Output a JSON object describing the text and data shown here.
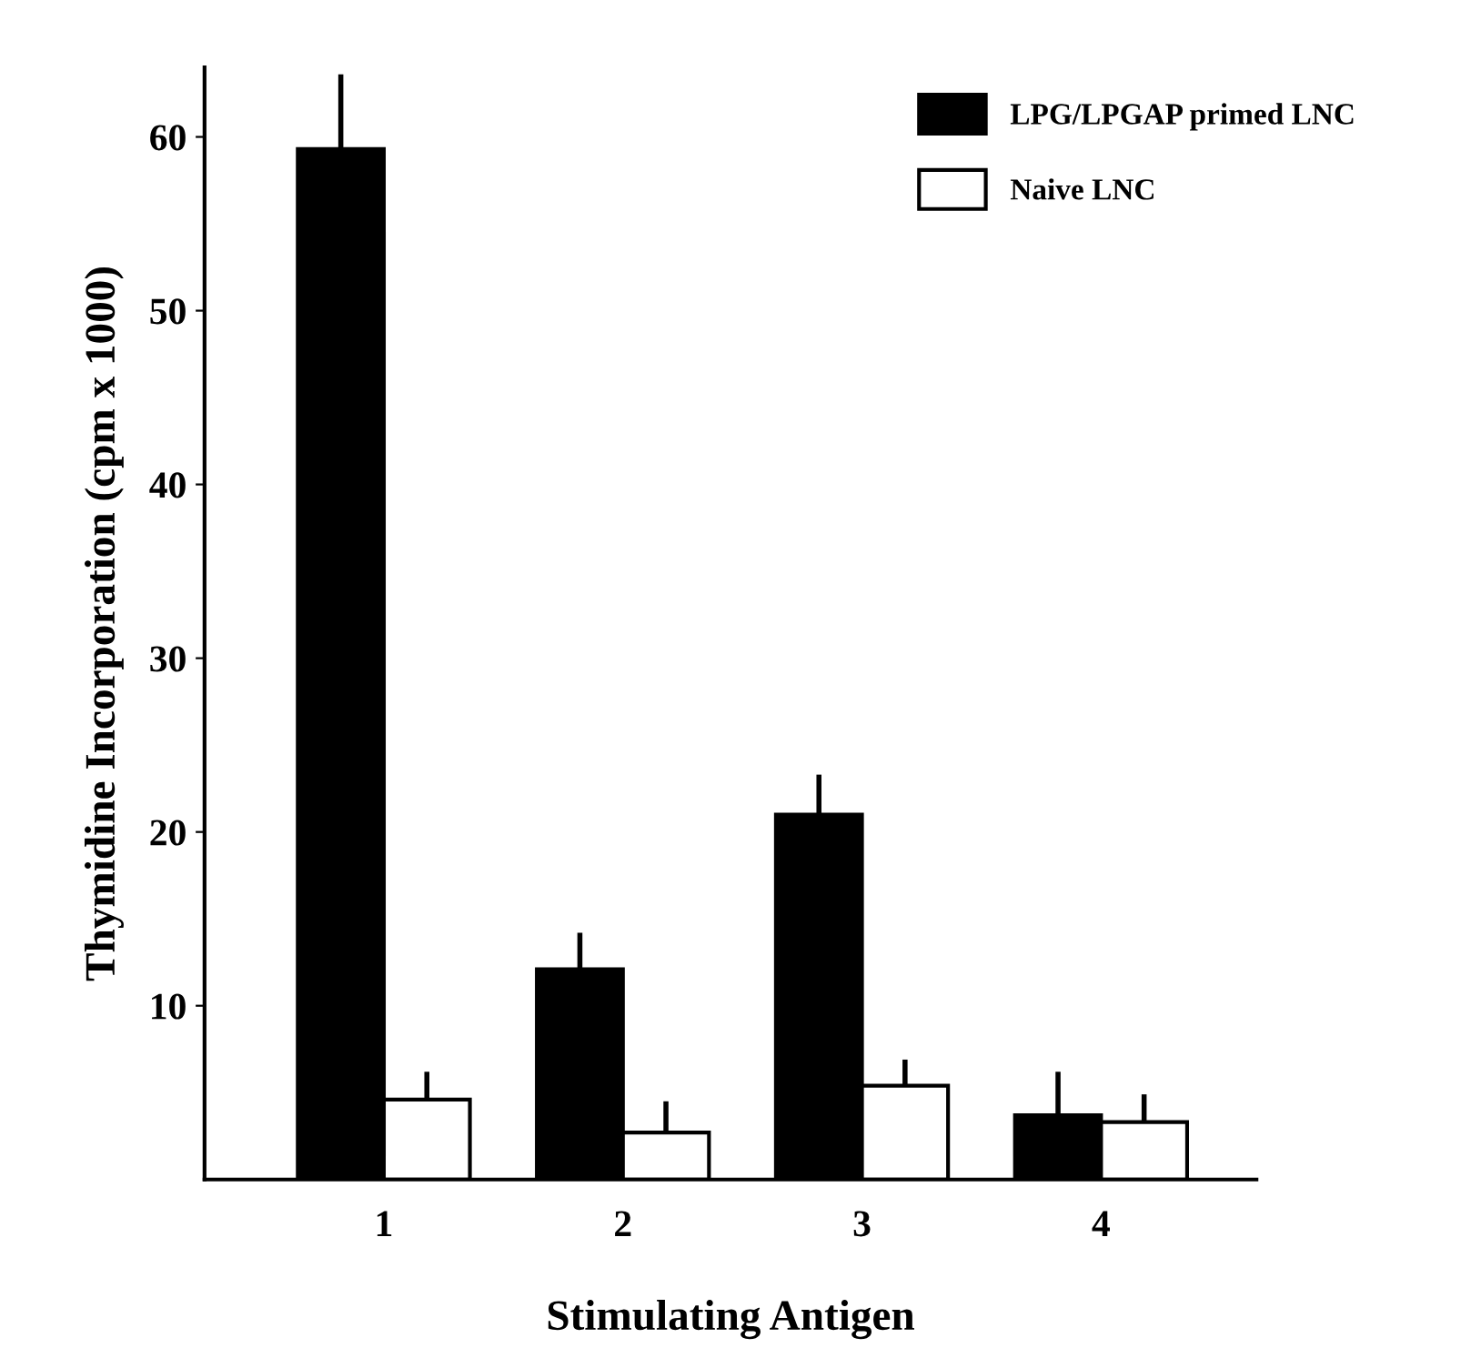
{
  "chart_data": {
    "type": "bar",
    "xlabel": "Stimulating Antigen",
    "ylabel": "Thymidine Incorporation (cpm x 1000)",
    "categories": [
      "1",
      "2",
      "3",
      "4"
    ],
    "series": [
      {
        "name": "LPG/LPGAP primed LNC",
        "color": "#000000",
        "values": [
          59.3,
          12.1,
          21.0,
          3.7
        ],
        "errors": [
          [
            59.3,
            63.6
          ],
          [
            12.1,
            14.2
          ],
          [
            21.0,
            23.3
          ],
          [
            3.7,
            6.2
          ]
        ]
      },
      {
        "name": "Naive LNC",
        "color": "#ffffff",
        "values": [
          4.6,
          2.7,
          5.4,
          3.3
        ],
        "errors": [
          [
            4.6,
            6.2
          ],
          [
            2.7,
            4.5
          ],
          [
            5.4,
            6.9
          ],
          [
            3.3,
            4.9
          ]
        ]
      }
    ],
    "ylim": [
      0,
      64
    ],
    "yticks": [
      10,
      20,
      30,
      40,
      50,
      60
    ],
    "grid": false,
    "legend": "top right"
  }
}
